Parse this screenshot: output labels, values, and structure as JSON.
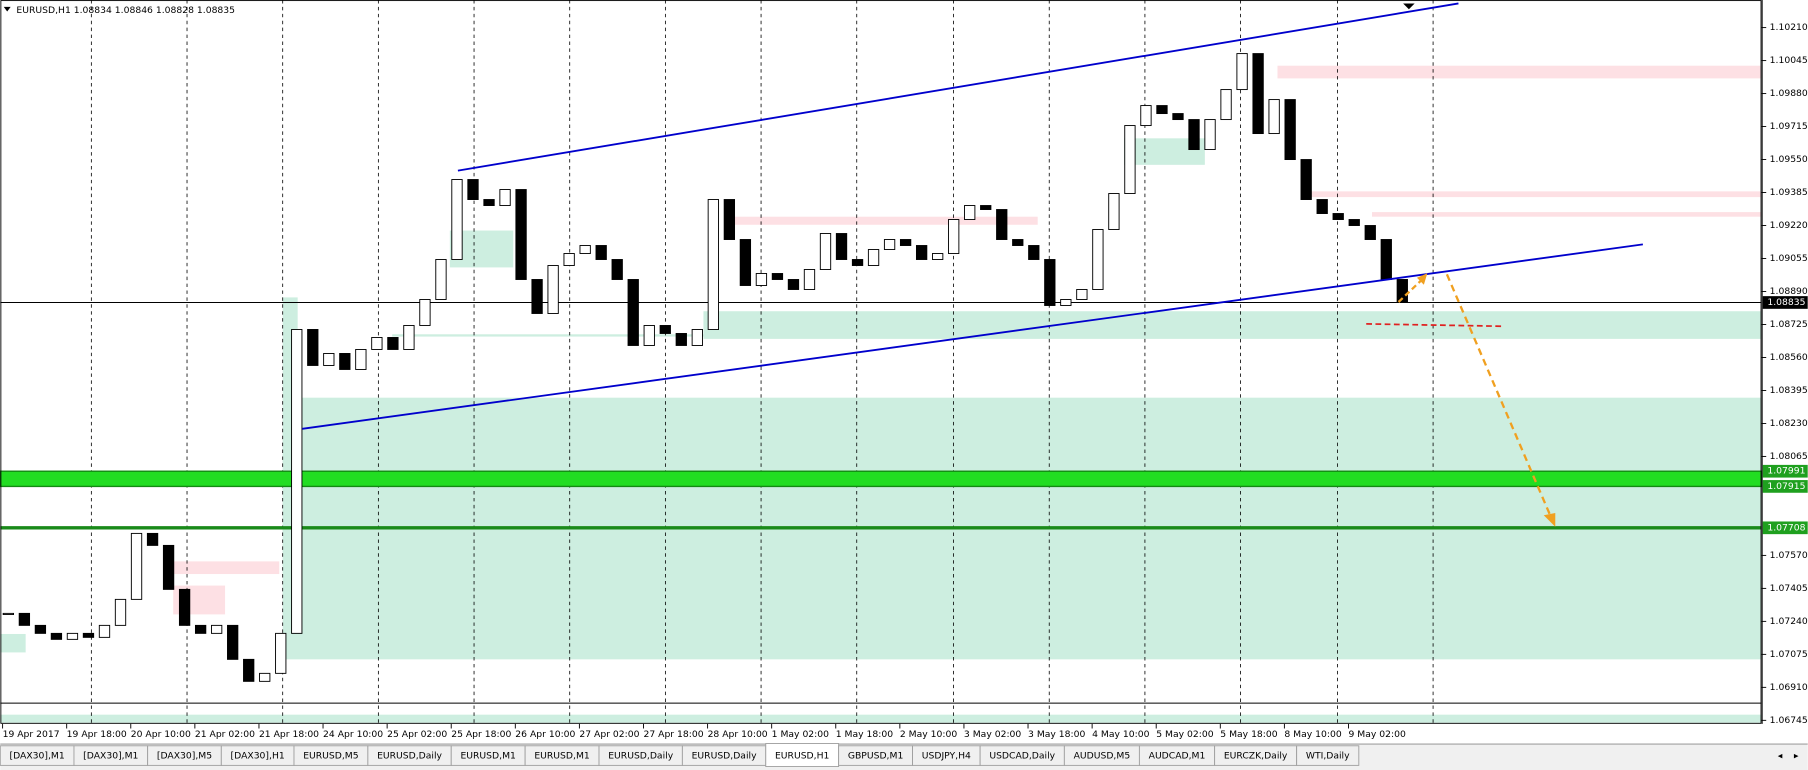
{
  "window": {
    "header": "EURUSD,H1  1.08834 1.08846 1.08828 1.08835"
  },
  "chart_data": {
    "type": "candlestick",
    "closes": [
      1.0728,
      1.0722,
      1.0718,
      1.0715,
      1.0718,
      1.0716,
      1.0722,
      1.0735,
      1.0768,
      1.0762,
      1.074,
      1.0722,
      1.0718,
      1.0722,
      1.0705,
      1.0694,
      1.0698,
      1.0718,
      1.087,
      1.0852,
      1.0858,
      1.085,
      1.086,
      1.0866,
      1.086,
      1.0872,
      1.0885,
      1.0905,
      1.0945,
      1.0935,
      1.0932,
      1.094,
      1.0895,
      1.0878,
      1.0902,
      1.0908,
      1.0912,
      1.0905,
      1.0895,
      1.0862,
      1.0872,
      1.0868,
      1.0862,
      1.087,
      1.0935,
      1.0915,
      1.0892,
      1.0898,
      1.0895,
      1.089,
      1.09,
      1.0918,
      1.0905,
      1.0902,
      1.091,
      1.0915,
      1.0912,
      1.0905,
      1.0908,
      1.0925,
      1.0932,
      1.093,
      1.0915,
      1.0912,
      1.0905,
      1.0882,
      1.0885,
      1.089,
      1.092,
      1.0938,
      1.0972,
      1.0982,
      1.0978,
      1.0975,
      1.096,
      1.0975,
      1.099,
      1.1008,
      1.0968,
      1.0985,
      1.0955,
      1.0935,
      1.0928,
      1.0925,
      1.0922,
      1.0915,
      1.0895,
      1.08835
    ],
    "up_color": "#ffffff",
    "down_color": "#000000",
    "ylim": [
      1.06733,
      1.10348
    ],
    "yticks": [
      {
        "value": 1.1021,
        "label": "1.10210"
      },
      {
        "value": 1.10045,
        "label": "1.10045"
      },
      {
        "value": 1.0988,
        "label": "1.09880"
      },
      {
        "value": 1.09715,
        "label": "1.09715"
      },
      {
        "value": 1.0955,
        "label": "1.09550"
      },
      {
        "value": 1.09385,
        "label": "1.09385"
      },
      {
        "value": 1.0922,
        "label": "1.09220"
      },
      {
        "value": 1.09055,
        "label": "1.09055"
      },
      {
        "value": 1.0889,
        "label": "1.08890"
      },
      {
        "value": 1.08725,
        "label": "1.08725"
      },
      {
        "value": 1.0856,
        "label": "1.08560"
      },
      {
        "value": 1.08395,
        "label": "1.08395"
      },
      {
        "value": 1.0823,
        "label": "1.08230"
      },
      {
        "value": 1.08065,
        "label": "1.08065"
      },
      {
        "value": 1.0757,
        "label": "1.07570"
      },
      {
        "value": 1.07405,
        "label": "1.07405"
      },
      {
        "value": 1.0724,
        "label": "1.07240"
      },
      {
        "value": 1.07075,
        "label": "1.07075"
      },
      {
        "value": 1.0691,
        "label": "1.06910"
      },
      {
        "value": 1.06745,
        "label": "1.06745"
      }
    ],
    "current_price": 1.08835,
    "level_labels": [
      1.07991,
      1.07915,
      1.07708
    ],
    "time_labels": [
      "19 Apr 2017",
      "19 Apr 18:00",
      "20 Apr 10:00",
      "21 Apr 02:00",
      "21 Apr 18:00",
      "24 Apr 10:00",
      "25 Apr 02:00",
      "25 Apr 18:00",
      "26 Apr 10:00",
      "27 Apr 02:00",
      "27 Apr 18:00",
      "28 Apr 10:00",
      "1 May 02:00",
      "1 May 18:00",
      "2 May 10:00",
      "3 May 02:00",
      "3 May 18:00",
      "4 May 10:00",
      "5 May 02:00",
      "5 May 18:00",
      "8 May 10:00",
      "9 May 02:00"
    ]
  },
  "tabs": [
    "[DAX30],M1",
    "[DAX30],M1",
    "[DAX30],M5",
    "[DAX30],H1",
    "EURUSD,M5",
    "EURUSD,Daily",
    "EURUSD,M1",
    "EURUSD,M1",
    "EURUSD,Daily",
    "EURUSD,Daily",
    "EURUSD,H1",
    "GBPUSD,M1",
    "USDJPY,H4",
    "USDCAD,Daily",
    "AUDUSD,M5",
    "AUDCAD,M1",
    "EURCZK,Daily",
    "WTI,Daily"
  ],
  "active_tab": 10
}
